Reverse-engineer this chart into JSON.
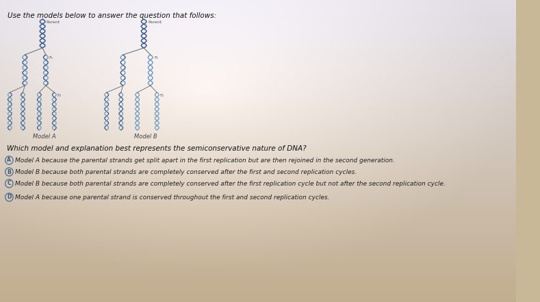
{
  "bg_color_top": "#d0ccd8",
  "bg_color_mid": "#e8e4dc",
  "bg_color_bot": "#c8b898",
  "title_text": "Use the models below to answer the question that follows:",
  "question_text": "Which model and explanation best represents the semiconservative nature of DNA?",
  "options": [
    {
      "label": "A",
      "text": "Model A because the parental strands get split apart in the first replication but are then rejoined in the second generation."
    },
    {
      "label": "B",
      "text": "Model B because both parental strands are completely conserved after the first and second replication cycles."
    },
    {
      "label": "C",
      "text": "Model B because both parental strands are completely conserved after the first replication cycle but not after the second replication cycle."
    },
    {
      "label": "D",
      "text": "Model A because one parental strand is conserved throughout the first and second replication cycles."
    }
  ],
  "model_a_label": "Model A",
  "model_b_label": "Model B",
  "dna_color_parental": "#3a5a8a",
  "dna_color_new": "#6a9abf",
  "title_fontsize": 7.5,
  "question_fontsize": 7.5,
  "option_fontsize": 6.5
}
